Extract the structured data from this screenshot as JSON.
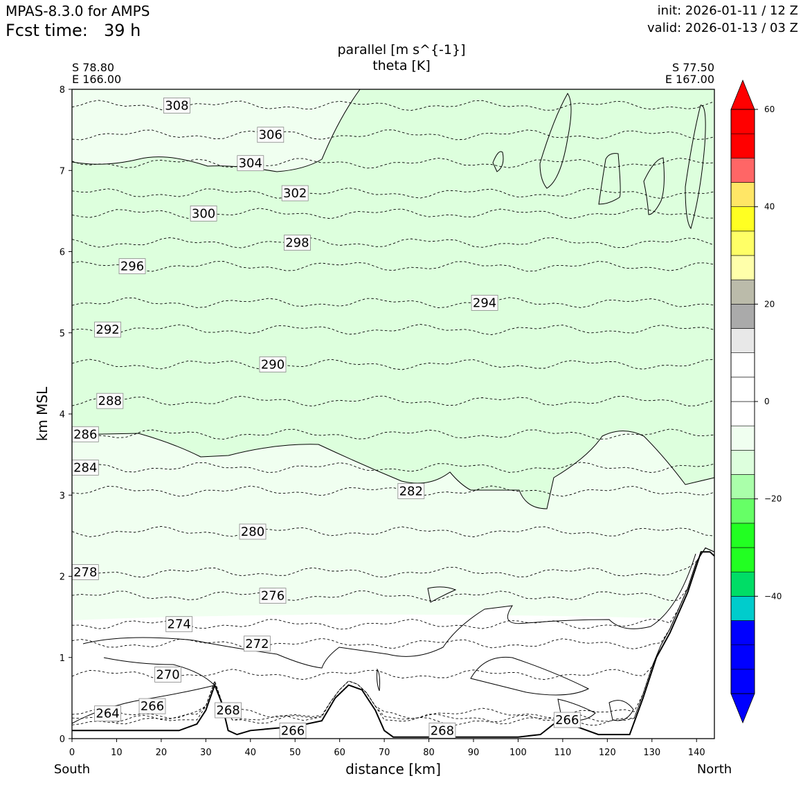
{
  "header": {
    "model": "MPAS-8.3.0 for AMPS",
    "fcst_label": "Fcst time:",
    "fcst_value": "39 h",
    "init": "init: 2026-01-11 / 12 Z",
    "valid": "valid: 2026-01-13 / 03 Z"
  },
  "chart_data": {
    "type": "contour-cross-section",
    "title_line1": "parallel [m s^{-1}]",
    "title_line2": "theta [K]",
    "left_endpoint": {
      "lat": "S 78.80",
      "lon": "E 166.00",
      "side": "South"
    },
    "right_endpoint": {
      "lat": "S 77.50",
      "lon": "E 167.00",
      "side": "North"
    },
    "xlabel": "distance [km]",
    "ylabel": "km MSL",
    "xlim": [
      0,
      144
    ],
    "ylim": [
      0,
      8
    ],
    "x_ticks": [
      "0",
      "10",
      "20",
      "30",
      "40",
      "50",
      "60",
      "70",
      "80",
      "90",
      "100",
      "110",
      "120",
      "130",
      "140"
    ],
    "y_ticks": [
      "0",
      "1",
      "2",
      "3",
      "4",
      "5",
      "6",
      "7",
      "8"
    ],
    "theta_levels": [
      264,
      266,
      268,
      270,
      272,
      274,
      276,
      278,
      280,
      282,
      284,
      286,
      288,
      290,
      292,
      294,
      296,
      298,
      300,
      302,
      304,
      306,
      308
    ],
    "theta_labels": [
      {
        "text": "308",
        "x": 23.5,
        "y": 7.8
      },
      {
        "text": "306",
        "x": 44.5,
        "y": 7.44
      },
      {
        "text": "304",
        "x": 40,
        "y": 7.09
      },
      {
        "text": "302",
        "x": 50,
        "y": 6.72
      },
      {
        "text": "300",
        "x": 29.5,
        "y": 6.47
      },
      {
        "text": "298",
        "x": 50.5,
        "y": 6.11
      },
      {
        "text": "296",
        "x": 13.5,
        "y": 5.82
      },
      {
        "text": "294",
        "x": 92.5,
        "y": 5.37
      },
      {
        "text": "292",
        "x": 8,
        "y": 5.04
      },
      {
        "text": "290",
        "x": 45,
        "y": 4.61
      },
      {
        "text": "288",
        "x": 8.5,
        "y": 4.16
      },
      {
        "text": "286",
        "x": 3,
        "y": 3.75
      },
      {
        "text": "284",
        "x": 3,
        "y": 3.34
      },
      {
        "text": "282",
        "x": 76,
        "y": 3.05
      },
      {
        "text": "280",
        "x": 40.5,
        "y": 2.55
      },
      {
        "text": "278",
        "x": 3,
        "y": 2.05
      },
      {
        "text": "276",
        "x": 45,
        "y": 1.76
      },
      {
        "text": "274",
        "x": 24,
        "y": 1.41
      },
      {
        "text": "272",
        "x": 41.5,
        "y": 1.17
      },
      {
        "text": "270",
        "x": 21.5,
        "y": 0.79
      },
      {
        "text": "268",
        "x": 35,
        "y": 0.35
      },
      {
        "text": "266",
        "x": 18,
        "y": 0.4
      },
      {
        "text": "264",
        "x": 8,
        "y": 0.31
      },
      {
        "text": "266",
        "x": 49.5,
        "y": 0.1
      },
      {
        "text": "268",
        "x": 83,
        "y": 0.1
      },
      {
        "text": "266",
        "x": 111,
        "y": 0.23
      }
    ],
    "terrain": [
      [
        0,
        0.1
      ],
      [
        24,
        0.1
      ],
      [
        28,
        0.18
      ],
      [
        30,
        0.35
      ],
      [
        32,
        0.66
      ],
      [
        33.5,
        0.45
      ],
      [
        35,
        0.1
      ],
      [
        37,
        0.05
      ],
      [
        40,
        0.1
      ],
      [
        50,
        0.15
      ],
      [
        56,
        0.22
      ],
      [
        59,
        0.5
      ],
      [
        62,
        0.66
      ],
      [
        65,
        0.6
      ],
      [
        68,
        0.35
      ],
      [
        70,
        0.1
      ],
      [
        72,
        0.02
      ],
      [
        100,
        0.02
      ],
      [
        105,
        0.05
      ],
      [
        108,
        0.18
      ],
      [
        110,
        0.22
      ],
      [
        113,
        0.15
      ],
      [
        118,
        0.05
      ],
      [
        125,
        0.05
      ],
      [
        128,
        0.5
      ],
      [
        131,
        1.0
      ],
      [
        134,
        1.3
      ],
      [
        138,
        1.8
      ],
      [
        141,
        2.3
      ],
      [
        143,
        2.3
      ],
      [
        144,
        2.25
      ]
    ],
    "colorbar": {
      "ticks": [
        "60",
        "40",
        "20",
        "0",
        "−20",
        "−40"
      ],
      "bins": [
        {
          "lo": -60,
          "hi": -55,
          "color": "#0000ff"
        },
        {
          "lo": -55,
          "hi": -50,
          "color": "#0000ff"
        },
        {
          "lo": -50,
          "hi": -45,
          "color": "#0000ff"
        },
        {
          "lo": -45,
          "hi": -40,
          "color": "#00cccc"
        },
        {
          "lo": -40,
          "hi": -35,
          "color": "#00dd66"
        },
        {
          "lo": -35,
          "hi": -30,
          "color": "#22ff22"
        },
        {
          "lo": -30,
          "hi": -25,
          "color": "#22ff22"
        },
        {
          "lo": -25,
          "hi": -20,
          "color": "#66ff66"
        },
        {
          "lo": -20,
          "hi": -15,
          "color": "#aaffaa"
        },
        {
          "lo": -15,
          "hi": -10,
          "color": "#ddffdd"
        },
        {
          "lo": -10,
          "hi": -5,
          "color": "#f0fff0"
        },
        {
          "lo": -5,
          "hi": 0,
          "color": "#ffffff"
        },
        {
          "lo": 0,
          "hi": 5,
          "color": "#ffffff"
        },
        {
          "lo": 5,
          "hi": 10,
          "color": "#ffffff"
        },
        {
          "lo": 10,
          "hi": 15,
          "color": "#e8e8e8"
        },
        {
          "lo": 15,
          "hi": 20,
          "color": "#aaaaaa"
        },
        {
          "lo": 20,
          "hi": 25,
          "color": "#bbbbaa"
        },
        {
          "lo": 25,
          "hi": 30,
          "color": "#ffffaa"
        },
        {
          "lo": 30,
          "hi": 35,
          "color": "#ffff66"
        },
        {
          "lo": 35,
          "hi": 40,
          "color": "#ffff22"
        },
        {
          "lo": 40,
          "hi": 45,
          "color": "#ffe666"
        },
        {
          "lo": 45,
          "hi": 50,
          "color": "#ff6666"
        },
        {
          "lo": 50,
          "hi": 55,
          "color": "#ff0000"
        },
        {
          "lo": 55,
          "hi": 60,
          "color": "#ff0000"
        }
      ],
      "under_color": "#0000ff",
      "over_color": "#ff0000"
    }
  }
}
